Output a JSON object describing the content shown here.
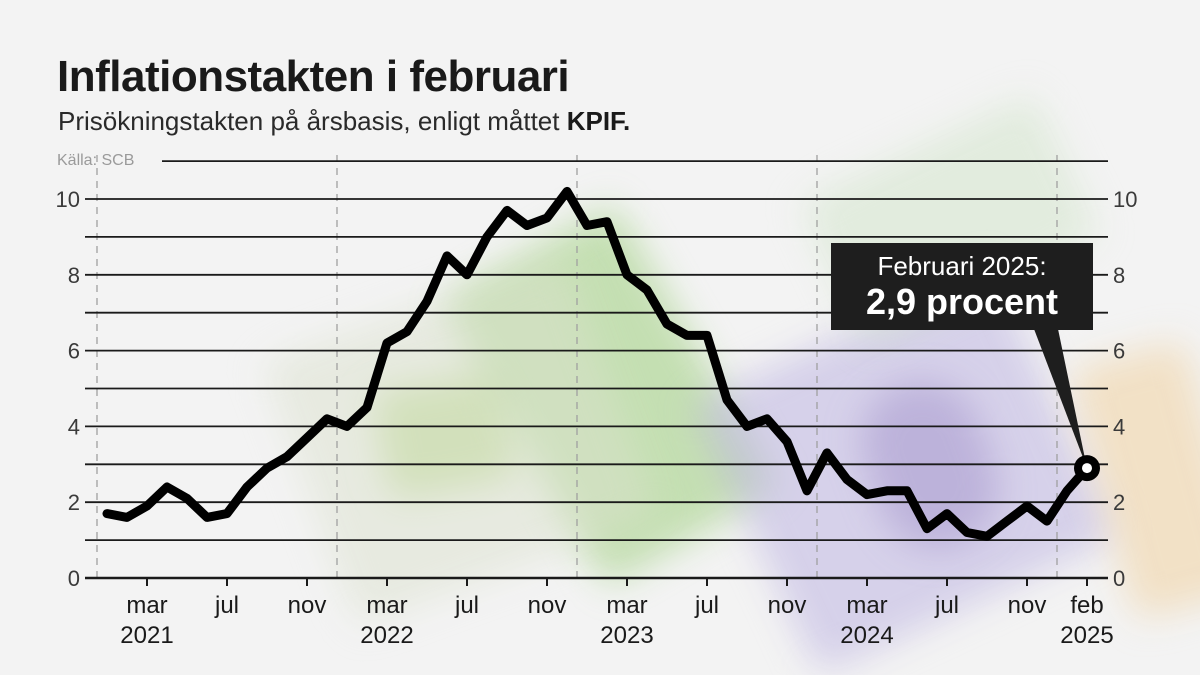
{
  "header": {
    "title": "Inflationstakten i februari",
    "subtitle_prefix": "Prisökningstakten på årsbasis, enligt måttet ",
    "subtitle_bold": "KPIF.",
    "source": "Källa: SCB"
  },
  "callout": {
    "line1": "Februari 2025:",
    "line2": "2,9 procent"
  },
  "colors": {
    "line": "#000000",
    "grid": "#1a1a1a",
    "callout_bg": "#1e1e1e",
    "year_divider": "#a0a0a0"
  },
  "chart_data": {
    "type": "line",
    "title": "Inflationstakten i februari",
    "subtitle": "Prisökningstakten på årsbasis, enligt måttet KPIF.",
    "source": "Källa: SCB",
    "xlabel": "",
    "ylabel": "",
    "ylim": [
      0,
      11
    ],
    "y_ticks": [
      0,
      2,
      4,
      6,
      8,
      10
    ],
    "y_gridlines": [
      0,
      1,
      2,
      3,
      4,
      5,
      6,
      7,
      8,
      9,
      10,
      11
    ],
    "y_axis_both_sides": true,
    "grid": true,
    "x_tick_labels": [
      {
        "month": "mar",
        "year": "2021",
        "index": 2
      },
      {
        "month": "jul",
        "year": "",
        "index": 6
      },
      {
        "month": "nov",
        "year": "",
        "index": 10
      },
      {
        "month": "mar",
        "year": "2022",
        "index": 14
      },
      {
        "month": "jul",
        "year": "",
        "index": 18
      },
      {
        "month": "nov",
        "year": "",
        "index": 22
      },
      {
        "month": "mar",
        "year": "2023",
        "index": 26
      },
      {
        "month": "jul",
        "year": "",
        "index": 30
      },
      {
        "month": "nov",
        "year": "",
        "index": 34
      },
      {
        "month": "mar",
        "year": "2024",
        "index": 38
      },
      {
        "month": "jul",
        "year": "",
        "index": 42
      },
      {
        "month": "nov",
        "year": "",
        "index": 46
      },
      {
        "month": "feb",
        "year": "2025",
        "index": 49
      }
    ],
    "x": [
      "2021-01",
      "2021-02",
      "2021-03",
      "2021-04",
      "2021-05",
      "2021-06",
      "2021-07",
      "2021-08",
      "2021-09",
      "2021-10",
      "2021-11",
      "2021-12",
      "2022-01",
      "2022-02",
      "2022-03",
      "2022-04",
      "2022-05",
      "2022-06",
      "2022-07",
      "2022-08",
      "2022-09",
      "2022-10",
      "2022-11",
      "2022-12",
      "2023-01",
      "2023-02",
      "2023-03",
      "2023-04",
      "2023-05",
      "2023-06",
      "2023-07",
      "2023-08",
      "2023-09",
      "2023-10",
      "2023-11",
      "2023-12",
      "2024-01",
      "2024-02",
      "2024-03",
      "2024-04",
      "2024-05",
      "2024-06",
      "2024-07",
      "2024-08",
      "2024-09",
      "2024-10",
      "2024-11",
      "2024-12",
      "2025-01",
      "2025-02"
    ],
    "series": [
      {
        "name": "KPIF",
        "values": [
          1.7,
          1.6,
          1.9,
          2.4,
          2.1,
          1.6,
          1.7,
          2.4,
          2.9,
          3.2,
          3.7,
          4.2,
          4.0,
          4.5,
          6.2,
          6.5,
          7.3,
          8.5,
          8.0,
          9.0,
          9.7,
          9.3,
          9.5,
          10.2,
          9.3,
          9.4,
          8.0,
          7.6,
          6.7,
          6.4,
          6.4,
          4.7,
          4.0,
          4.2,
          3.6,
          2.3,
          3.3,
          2.6,
          2.2,
          2.3,
          2.3,
          1.3,
          1.7,
          1.2,
          1.1,
          1.5,
          1.9,
          1.5,
          2.3,
          2.9
        ]
      }
    ],
    "annotations": [
      {
        "x": "2025-02",
        "y": 2.9,
        "text": "Februari 2025: 2,9 procent",
        "marker": "ring"
      }
    ],
    "year_dividers": [
      "2021",
      "2022",
      "2023",
      "2024",
      "2025"
    ]
  }
}
